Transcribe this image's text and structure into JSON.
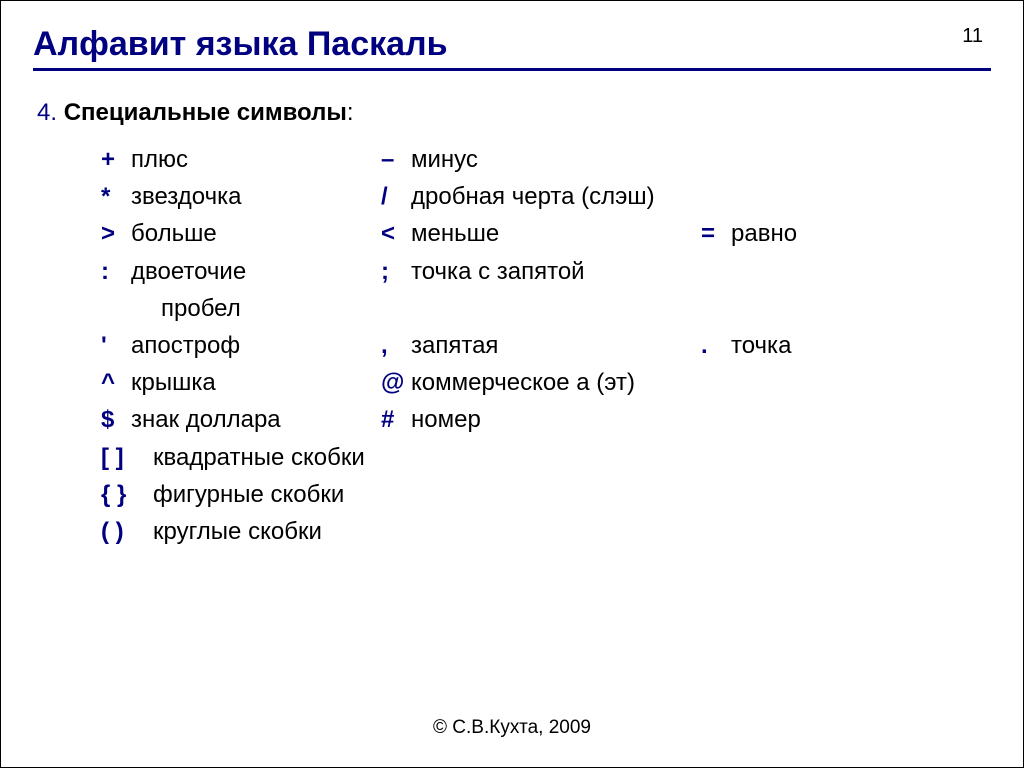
{
  "page_number": "11",
  "title": "Алфавит языка Паскаль",
  "section": {
    "num": "4.",
    "heading": "Специальные символы",
    "colon": ":"
  },
  "rows": [
    [
      {
        "sym": "+",
        "label": "плюс"
      },
      {
        "sym": "–",
        "label": "минус"
      }
    ],
    [
      {
        "sym": "*",
        "label": "звездочка"
      },
      {
        "sym": "/",
        "label": "дробная черта (слэш)"
      }
    ],
    [
      {
        "sym": ">",
        "label": "больше"
      },
      {
        "sym": "<",
        "label": "меньше"
      },
      {
        "sym": "=",
        "label": "равно"
      }
    ],
    [
      {
        "sym": ":",
        "label": "двоеточие"
      },
      {
        "sym": ";",
        "label": "точка с запятой"
      }
    ],
    [
      {
        "sym": "",
        "label": "пробел",
        "spacepad": true
      }
    ],
    [
      {
        "sym": "'",
        "label": "апостроф"
      },
      {
        "sym": ",",
        "label": "запятая"
      },
      {
        "sym": ".",
        "label": "точка"
      }
    ],
    [
      {
        "sym": "^",
        "label": "крышка"
      },
      {
        "sym": "@",
        "label": "коммерческое а (эт)"
      }
    ],
    [
      {
        "sym": "$",
        "label": "знак доллара"
      },
      {
        "sym": "#",
        "label": "номер"
      }
    ],
    [
      {
        "sym": "[  ]",
        "label": "квадратные скобки",
        "wide": true
      }
    ],
    [
      {
        "sym": "{  }",
        "label": "фигурные скобки",
        "wide": true
      }
    ],
    [
      {
        "sym": "(  )",
        "label": "круглые скобки",
        "wide": true
      }
    ]
  ],
  "footer": "© С.В.Кухта, 2009",
  "colors": {
    "accent": "#000080",
    "text": "#000000",
    "background": "#ffffff"
  },
  "typography": {
    "title_fontsize": 34,
    "body_fontsize": 24,
    "footer_fontsize": 19,
    "font_family": "Arial"
  }
}
